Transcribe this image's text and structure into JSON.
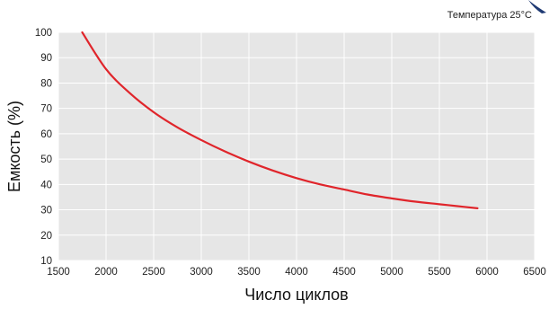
{
  "chart_data": {
    "type": "line",
    "title": "",
    "annotation": "Температура 25°C",
    "xlabel": "Число циклов",
    "ylabel": "Емкость (%)",
    "xlim": [
      1500,
      6500
    ],
    "ylim": [
      10,
      100
    ],
    "x_ticks": [
      "1500",
      "2000",
      "2500",
      "3000",
      "3500",
      "4000",
      "4500",
      "5000",
      "5500",
      "6000",
      "6500"
    ],
    "y_ticks": [
      "100",
      "90",
      "80",
      "70",
      "60",
      "50",
      "40",
      "30",
      "20",
      "10"
    ],
    "grid": true,
    "colors": {
      "plot_background": "#e6e6e6",
      "grid": "#ffffff",
      "series": "#e0252b"
    },
    "series": [
      {
        "x": [
          1750,
          2000,
          2250,
          2500,
          2750,
          3000,
          3250,
          3500,
          3750,
          4000,
          4250,
          4500,
          4750,
          5000,
          5250,
          5500,
          5750,
          5900
        ],
        "values": [
          100,
          85.5,
          76,
          68.5,
          62.5,
          57.5,
          53,
          49,
          45.5,
          42.5,
          40,
          38,
          36,
          34.5,
          33.2,
          32.2,
          31.2,
          30.6
        ]
      }
    ]
  }
}
